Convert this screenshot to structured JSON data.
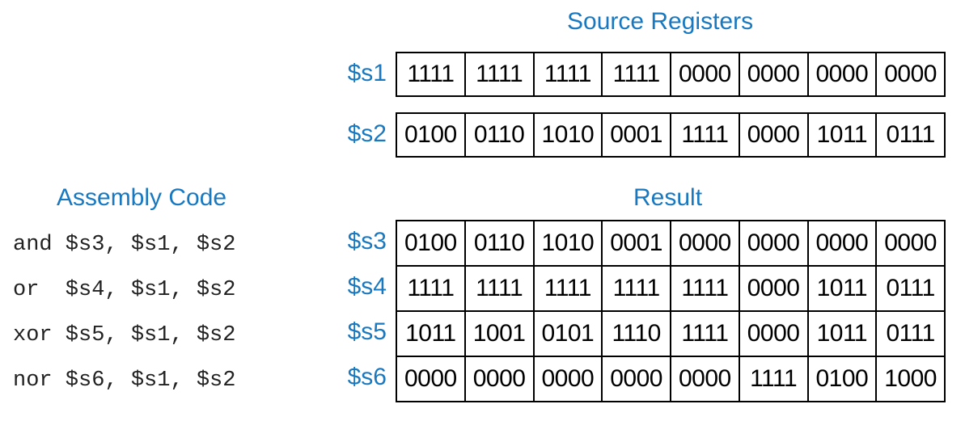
{
  "headings": {
    "source": "Source Registers",
    "assembly": "Assembly Code",
    "result": "Result"
  },
  "source_registers": [
    {
      "name": "$s1",
      "nibbles": [
        "1111",
        "1111",
        "1111",
        "1111",
        "0000",
        "0000",
        "0000",
        "0000"
      ]
    },
    {
      "name": "$s2",
      "nibbles": [
        "0100",
        "0110",
        "1010",
        "0001",
        "1111",
        "0000",
        "1011",
        "0111"
      ]
    }
  ],
  "assembly_code": [
    "and $s3, $s1, $s2",
    "or  $s4, $s1, $s2",
    "xor $s5, $s1, $s2",
    "nor $s6, $s1, $s2"
  ],
  "result_registers": [
    {
      "name": "$s3",
      "nibbles": [
        "0100",
        "0110",
        "1010",
        "0001",
        "0000",
        "0000",
        "0000",
        "0000"
      ]
    },
    {
      "name": "$s4",
      "nibbles": [
        "1111",
        "1111",
        "1111",
        "1111",
        "1111",
        "0000",
        "1011",
        "0111"
      ]
    },
    {
      "name": "$s5",
      "nibbles": [
        "1011",
        "1001",
        "0101",
        "1110",
        "1111",
        "0000",
        "1011",
        "0111"
      ]
    },
    {
      "name": "$s6",
      "nibbles": [
        "0000",
        "0000",
        "0000",
        "0000",
        "0000",
        "1111",
        "0100",
        "1000"
      ]
    }
  ]
}
